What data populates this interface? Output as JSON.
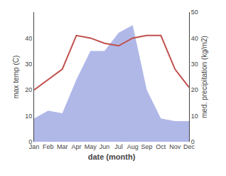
{
  "chart_data": {
    "type": "line",
    "x_label": "date (month)",
    "y_label": "max temp (C)",
    "y2_label": "med. precipitation (kg/m2)",
    "categories": [
      "Jan",
      "Feb",
      "Mar",
      "Apr",
      "May",
      "Jun",
      "Jul",
      "Aug",
      "Sep",
      "Oct",
      "Nov",
      "Dec"
    ],
    "series": [
      {
        "type": "area",
        "color": "#b0b8e8",
        "axis": "y2",
        "values": [
          9,
          12,
          11,
          24,
          35,
          35,
          42,
          45,
          20,
          9,
          8,
          8
        ]
      },
      {
        "type": "line",
        "color": "#c0504d",
        "values": [
          20,
          24,
          28,
          41,
          40,
          38,
          37,
          40,
          41,
          41,
          28,
          21
        ]
      }
    ],
    "ylim": [
      0,
      50
    ],
    "yticks": [
      0,
      10,
      20,
      30,
      40
    ],
    "y2lim": [
      0,
      50
    ],
    "y2ticks": [
      0,
      10,
      20,
      30,
      40,
      50
    ],
    "grid": false
  }
}
